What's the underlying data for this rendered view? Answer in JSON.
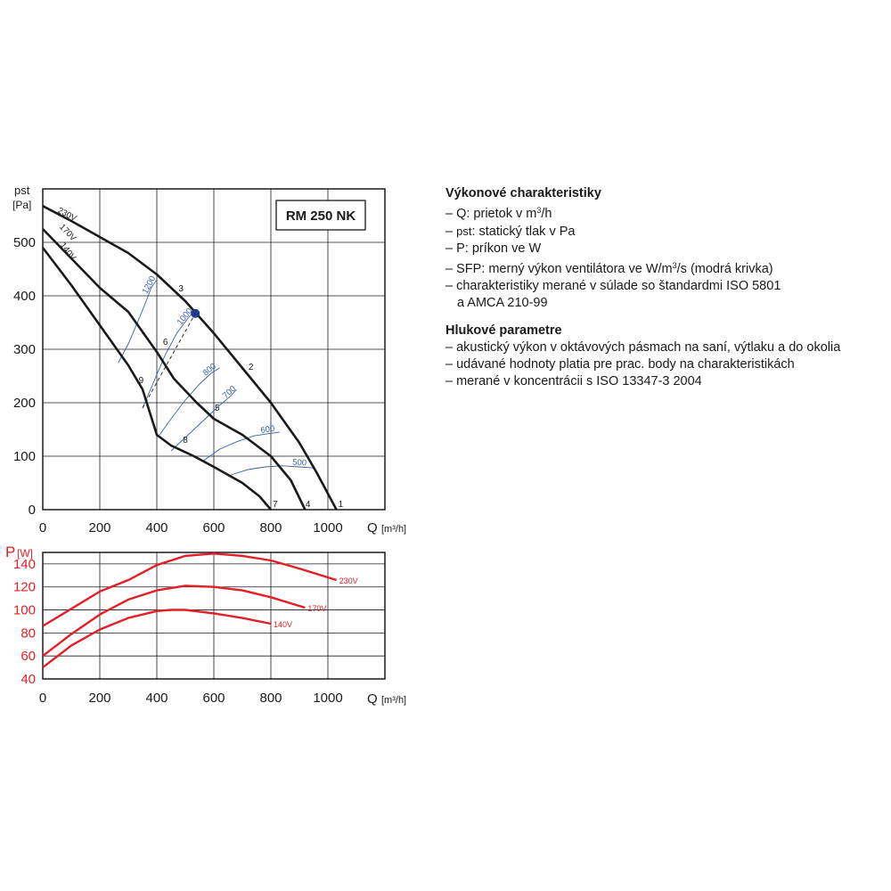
{
  "chart_data": [
    {
      "type": "line",
      "title": "RM 250 NK",
      "xlabel": "Q [m³/h]",
      "ylabel": "pst [Pa]",
      "ylabel_parts": [
        "pst",
        "[Pa]"
      ],
      "xlabel_text": "Q",
      "xunit_text": "[m³/h]",
      "xlim": [
        0,
        1200
      ],
      "ylim": [
        0,
        600
      ],
      "xticks": [
        0,
        200,
        400,
        600,
        800,
        1000
      ],
      "yticks": [
        0,
        100,
        200,
        300,
        400,
        500
      ],
      "xtick_labels": [
        "0",
        "200",
        "400",
        "600",
        "800",
        "1000"
      ],
      "ytick_labels": [
        "0",
        "100",
        "200",
        "300",
        "400",
        "500"
      ],
      "grid": true,
      "series": [
        {
          "name": "230V",
          "color": "#1a1a1a",
          "x": [
            0,
            100,
            200,
            300,
            400,
            500,
            600,
            700,
            800,
            900,
            960,
            1030
          ],
          "y": [
            568,
            540,
            510,
            480,
            440,
            390,
            330,
            265,
            200,
            125,
            70,
            0
          ]
        },
        {
          "name": "170V",
          "color": "#1a1a1a",
          "x": [
            0,
            100,
            200,
            300,
            400,
            460,
            540,
            600,
            700,
            800,
            870,
            920
          ],
          "y": [
            525,
            470,
            415,
            370,
            295,
            245,
            200,
            170,
            140,
            100,
            55,
            0
          ]
        },
        {
          "name": "140V",
          "color": "#1a1a1a",
          "x": [
            0,
            100,
            200,
            300,
            350,
            400,
            450,
            530,
            600,
            700,
            760,
            800
          ],
          "y": [
            490,
            420,
            345,
            270,
            225,
            140,
            120,
            100,
            80,
            50,
            25,
            0
          ]
        }
      ],
      "sfp_curves": [
        {
          "label": "1200",
          "color": "#3a62a8",
          "x": [
            265,
            300,
            340,
            370,
            380,
            400
          ],
          "y": [
            275,
            310,
            360,
            400,
            415,
            430
          ]
        },
        {
          "label": "1000",
          "color": "#3a62a8",
          "x": [
            350,
            390,
            430,
            470,
            505,
            535
          ],
          "y": [
            190,
            240,
            290,
            330,
            355,
            375
          ]
        },
        {
          "label": "800",
          "color": "#3a62a8",
          "x": [
            410,
            450,
            500,
            550,
            590,
            620
          ],
          "y": [
            140,
            170,
            205,
            235,
            255,
            265
          ]
        },
        {
          "label": "700",
          "color": "#3a62a8",
          "x": [
            450,
            520,
            580,
            620,
            660,
            680
          ],
          "y": [
            110,
            145,
            175,
            195,
            213,
            225
          ]
        },
        {
          "label": "600",
          "color": "#3a62a8",
          "x": [
            560,
            620,
            680,
            740,
            790,
            830
          ],
          "y": [
            90,
            113,
            127,
            138,
            142,
            145
          ]
        },
        {
          "label": "500",
          "color": "#3a62a8",
          "x": [
            660,
            720,
            780,
            840,
            900,
            950
          ],
          "y": [
            65,
            75,
            80,
            82,
            80,
            78
          ]
        }
      ],
      "point_labels": [
        {
          "text": "1",
          "x": 1045,
          "y": 5
        },
        {
          "text": "2",
          "x": 730,
          "y": 262
        },
        {
          "text": "3",
          "x": 485,
          "y": 408
        },
        {
          "text": "4",
          "x": 930,
          "y": 5
        },
        {
          "text": "5",
          "x": 612,
          "y": 185
        },
        {
          "text": "6",
          "x": 430,
          "y": 308
        },
        {
          "text": "7",
          "x": 815,
          "y": 5
        },
        {
          "text": "8",
          "x": 500,
          "y": 125
        },
        {
          "text": "9",
          "x": 345,
          "y": 237
        }
      ],
      "operating_point": {
        "x": 535,
        "y": 367,
        "color": "#1f3b8f"
      },
      "series_label_color": "#1a1a1a",
      "grid_color": "#1a1a1a",
      "sfp_color": "#3a62a8"
    },
    {
      "type": "line",
      "title": "",
      "xlabel": "Q [m³/h]",
      "ylabel": "P[W]",
      "ylabel_text": "P",
      "yunit_text": "[W]",
      "xlabel_text": "Q",
      "xunit_text": "[m³/h]",
      "xlim": [
        0,
        1200
      ],
      "ylim": [
        40,
        150
      ],
      "xticks": [
        0,
        200,
        400,
        600,
        800,
        1000
      ],
      "yticks": [
        40,
        60,
        80,
        100,
        120,
        140
      ],
      "xtick_labels": [
        "0",
        "200",
        "400",
        "600",
        "800",
        "1000"
      ],
      "ytick_labels": [
        "40",
        "60",
        "80",
        "100",
        "120",
        "140"
      ],
      "grid": true,
      "series": [
        {
          "name": "230V",
          "color": "#e41e26",
          "x": [
            0,
            100,
            200,
            300,
            400,
            500,
            600,
            700,
            800,
            900,
            1030
          ],
          "y": [
            86,
            101,
            116,
            126,
            139,
            147,
            149,
            147,
            143,
            136,
            126
          ]
        },
        {
          "name": "170V",
          "color": "#e41e26",
          "x": [
            0,
            100,
            200,
            300,
            400,
            500,
            600,
            700,
            800,
            920
          ],
          "y": [
            60,
            79,
            96,
            109,
            117,
            121,
            120,
            117,
            111,
            102
          ]
        },
        {
          "name": "140V",
          "color": "#e41e26",
          "x": [
            0,
            100,
            200,
            300,
            400,
            450,
            500,
            600,
            700,
            800
          ],
          "y": [
            50,
            69,
            83,
            93,
            99,
            100,
            100,
            97,
            93,
            88
          ]
        }
      ],
      "axis_color": "#e41e26",
      "grid_color": "#1a1a1a"
    }
  ],
  "legend": {
    "performance_title": "Výkonové charakteristiky",
    "perf_q_text": "– Q: prietok v m",
    "perf_q_sup": "3",
    "perf_q_tail": "/h",
    "perf_pst_dash": "– ",
    "perf_pst_sym": "pst",
    "perf_pst_tail": ": statický tlak v Pa",
    "perf_p": "– P: príkon ve W",
    "perf_sfp_text": "– SFP: merný výkon ventilátora ve W/m",
    "perf_sfp_sup": "3",
    "perf_sfp_tail": "/s (modrá krivka)",
    "perf_std_1": "– charakteristiky merané v súlade so štandardmi ISO 5801",
    "perf_std_2": "a AMCA 210-99",
    "noise_title": "Hlukové parametre",
    "noise_1": "– akustický výkon v oktávových pásmach na saní, výtlaku a do okolia",
    "noise_2": "– udávané hodnoty platia pre prac. body na charakteristikách",
    "noise_3": "– merané v koncentrácii s ISO 13347-3 2004"
  }
}
